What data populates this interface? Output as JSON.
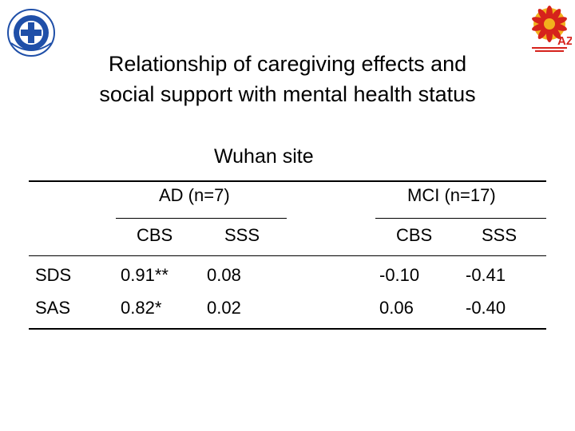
{
  "title_line1": "Relationship of caregiving effects and",
  "title_line2": "social support with mental health status",
  "site": "Wuhan site",
  "groups": [
    "AD (n=7)",
    "MCI (n=17)"
  ],
  "subheaders": [
    "CBS",
    "SSS",
    "CBS",
    "SSS"
  ],
  "rows": [
    {
      "label": "SDS",
      "values": [
        "0.91**",
        "0.08",
        "-0.10",
        "-0.41"
      ]
    },
    {
      "label": "SAS",
      "values": [
        "0.82*",
        "0.02",
        "0.06",
        "-0.40"
      ]
    }
  ],
  "logo_right_text": "AZ",
  "colors": {
    "text": "#000000",
    "logo_left_blue": "#1f4fa8",
    "logo_right_red": "#d6221c",
    "logo_right_yellow": "#f2b11d"
  }
}
